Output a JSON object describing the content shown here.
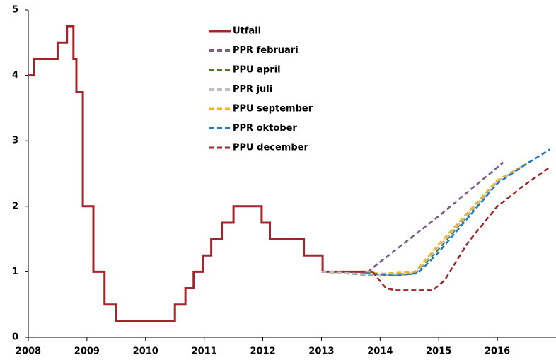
{
  "chart_data": {
    "type": "line",
    "xlim": [
      2008,
      2017
    ],
    "xticks": [
      2008,
      2009,
      2010,
      2011,
      2012,
      2013,
      2014,
      2015,
      2016
    ],
    "ylim": [
      0,
      5
    ],
    "yticks": [
      0,
      1,
      2,
      3,
      4,
      5
    ],
    "grid": false,
    "legend": "top",
    "series": [
      {
        "name": "Utfall",
        "color": "#a0262a",
        "dash": false,
        "x": [
          2008,
          2008.1,
          2008.1,
          2008.5,
          2008.5,
          2008.66,
          2008.66,
          2008.77,
          2008.77,
          2008.82,
          2008.82,
          2008.93,
          2008.93,
          2009.11,
          2009.11,
          2009.3,
          2009.3,
          2009.5,
          2009.5,
          2010.5,
          2010.5,
          2010.68,
          2010.68,
          2010.82,
          2010.82,
          2010.98,
          2010.98,
          2011.12,
          2011.12,
          2011.3,
          2011.3,
          2011.5,
          2011.5,
          2011.98,
          2011.98,
          2012.12,
          2012.12,
          2012.7,
          2012.7,
          2013.02,
          2013.02,
          2013.87
        ],
        "values": [
          4,
          4,
          4.25,
          4.25,
          4.5,
          4.5,
          4.75,
          4.75,
          4.25,
          4.25,
          3.75,
          3.75,
          2,
          2,
          1,
          1,
          0.5,
          0.5,
          0.25,
          0.25,
          0.5,
          0.5,
          0.75,
          0.75,
          1,
          1,
          1.25,
          1.25,
          1.5,
          1.5,
          1.75,
          1.75,
          2,
          2,
          1.75,
          1.75,
          1.5,
          1.5,
          1.25,
          1.25,
          1,
          1
        ]
      },
      {
        "name": "PPR februari",
        "color": "#7b5a8c",
        "dash": true,
        "x": [
          2013.0,
          2013.75,
          2014.0,
          2015.0,
          2016.1
        ],
        "values": [
          1,
          0.97,
          1.15,
          1.85,
          2.67
        ]
      },
      {
        "name": "PPU april",
        "color": "#4e7a2a",
        "dash": true,
        "x": [
          2013.0,
          2014.0,
          2014.6,
          2015.0,
          2016.0,
          2016.5
        ],
        "values": [
          1,
          0.94,
          0.97,
          1.35,
          2.38,
          2.65
        ]
      },
      {
        "name": "PPR juli",
        "color": "#bfbfbf",
        "dash": true,
        "x": [
          2013.0,
          2014.0,
          2014.6,
          2015.0,
          2016.0,
          2016.5
        ],
        "values": [
          1,
          0.95,
          0.98,
          1.38,
          2.38,
          2.65
        ]
      },
      {
        "name": "PPU september",
        "color": "#f4b120",
        "dash": true,
        "x": [
          2013.75,
          2014.0,
          2014.6,
          2015.0,
          2016.0,
          2016.5
        ],
        "values": [
          1,
          0.97,
          1.0,
          1.42,
          2.4,
          2.65
        ]
      },
      {
        "name": "PPR oktober",
        "color": "#1f7bbf",
        "dash": true,
        "x": [
          2013.75,
          2014.25,
          2014.65,
          2015.0,
          2016.0,
          2016.5,
          2016.9
        ],
        "values": [
          0.98,
          0.94,
          0.98,
          1.3,
          2.35,
          2.65,
          2.87
        ]
      },
      {
        "name": "PPU december",
        "color": "#a0262a",
        "dash": true,
        "x": [
          2013.87,
          2014.1,
          2014.25,
          2014.9,
          2015.1,
          2015.5,
          2016.0,
          2016.5,
          2016.9
        ],
        "values": [
          1,
          0.75,
          0.72,
          0.72,
          0.87,
          1.45,
          2.0,
          2.35,
          2.6
        ]
      }
    ]
  }
}
